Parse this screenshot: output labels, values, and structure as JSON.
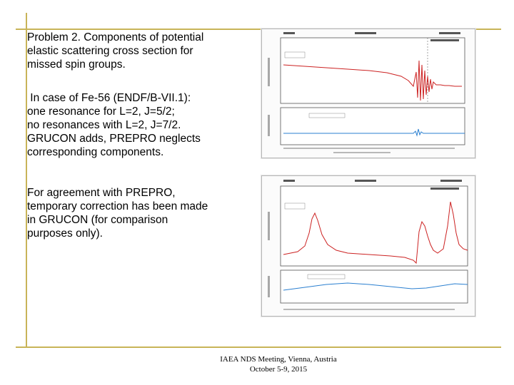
{
  "slide": {
    "paragraphs": [
      {
        "lines": [
          "Problem 2.  Components of potential",
          "elastic scattering cross section for",
          "missed spin groups."
        ]
      },
      {
        "lines": [
          " In case of Fe-56 (ENDF/B-VII.1):",
          "one resonance for L=2, J=5/2;",
          "no resonances with L=2, J=7/2.",
          "GRUCON adds, PREPRO neglects",
          "corresponding components."
        ]
      },
      {
        "lines": [
          "For agreement with PREPRO,",
          "temporary correction has been made",
          "in GRUCON (for comparison",
          "purposes only)."
        ]
      }
    ],
    "footer": {
      "line1": "IAEA NDS Meeting, Vienna, Austria",
      "line2": "October 5-9, 2015"
    }
  },
  "colors": {
    "accent_line": "#c8b458",
    "grucon_curve": "#cc2222",
    "ratio_curve": "#2a7fd0"
  }
}
